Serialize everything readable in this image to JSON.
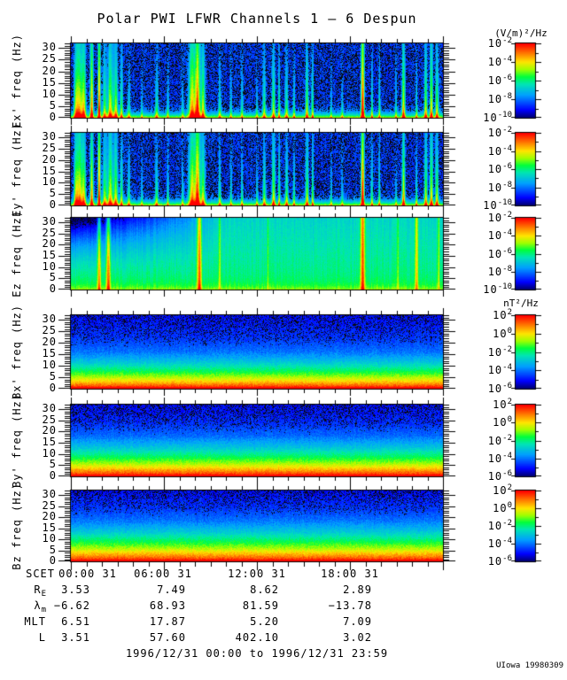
{
  "title": "Polar PWI LFWR Channels 1 — 6 Despun",
  "credit": "UIowa 19980309",
  "footer": {
    "date_range": "1996/12/31 00:00 to 1996/12/31 23:59"
  },
  "units": {
    "electric": "(V/m)²/Hz",
    "magnetic": "nT²/Hz"
  },
  "time_axis": {
    "label": "SCET",
    "tick_labels": [
      "00:00 31",
      "06:00 31",
      "12:00 31",
      "18:00 31"
    ],
    "tick_hours": [
      0,
      6,
      12,
      18
    ],
    "range_hours": [
      0,
      24
    ]
  },
  "ephemeris": {
    "rows": [
      {
        "label": "R",
        "sub": "E",
        "values": [
          "3.53",
          "7.49",
          "8.62",
          "2.89"
        ]
      },
      {
        "label": "λ",
        "sub": "m",
        "values": [
          "−6.62",
          "68.93",
          "81.59",
          "−13.78"
        ]
      },
      {
        "label": "MLT",
        "sub": "",
        "values": [
          "6.51",
          "17.87",
          "5.20",
          "7.09"
        ]
      },
      {
        "label": "L",
        "sub": "",
        "values": [
          "3.51",
          "57.60",
          "402.10",
          "3.02"
        ]
      }
    ]
  },
  "chart_data": {
    "type": "heatmap",
    "title": "Polar PWI LFWR Channels 1 — 6 Despun",
    "colormap": "rainbow-blue-to-red",
    "x_range_hours": [
      0,
      24
    ],
    "x_major_tick_hours": 6,
    "y_range_hz": [
      0,
      32
    ],
    "y_ticks_hz": [
      0,
      5,
      10,
      15,
      20,
      25,
      30
    ],
    "panels": [
      {
        "name": "Ex'",
        "ylabel": "Ex' freq (Hz)",
        "kind": "electric-burst",
        "colorbar": {
          "unit": "(V/m)²/Hz",
          "exponents": [
            -2,
            -4,
            -6,
            -8,
            -10
          ]
        },
        "background_level": 1e-09,
        "bursts": [
          [
            0.012,
            0.5,
            0.004
          ],
          [
            0.022,
            0.7,
            0.006
          ],
          [
            0.034,
            0.6,
            0.004
          ],
          [
            0.055,
            0.8,
            0.003
          ],
          [
            0.075,
            0.95,
            0.0025
          ],
          [
            0.09,
            0.5,
            0.004
          ],
          [
            0.105,
            0.65,
            0.005
          ],
          [
            0.12,
            0.6,
            0.004
          ],
          [
            0.135,
            0.5,
            0.003
          ],
          [
            0.155,
            0.35,
            0.003
          ],
          [
            0.19,
            0.3,
            0.002
          ],
          [
            0.23,
            0.4,
            0.003
          ],
          [
            0.26,
            0.35,
            0.002
          ],
          [
            0.3,
            0.3,
            0.002
          ],
          [
            0.325,
            0.75,
            0.006
          ],
          [
            0.34,
            0.9,
            0.005
          ],
          [
            0.355,
            0.6,
            0.004
          ],
          [
            0.4,
            0.35,
            0.003
          ],
          [
            0.43,
            0.3,
            0.002
          ],
          [
            0.46,
            0.35,
            0.002
          ],
          [
            0.5,
            0.3,
            0.002
          ],
          [
            0.52,
            0.45,
            0.003
          ],
          [
            0.545,
            0.55,
            0.003
          ],
          [
            0.56,
            0.5,
            0.002
          ],
          [
            0.58,
            0.45,
            0.003
          ],
          [
            0.6,
            0.4,
            0.002
          ],
          [
            0.635,
            0.55,
            0.003
          ],
          [
            0.65,
            0.5,
            0.002
          ],
          [
            0.7,
            0.25,
            0.002
          ],
          [
            0.73,
            0.3,
            0.002
          ],
          [
            0.785,
            1.0,
            0.003
          ],
          [
            0.81,
            0.45,
            0.002
          ],
          [
            0.83,
            0.4,
            0.002
          ],
          [
            0.875,
            0.3,
            0.002
          ],
          [
            0.895,
            0.7,
            0.003
          ],
          [
            0.93,
            0.35,
            0.002
          ],
          [
            0.955,
            0.6,
            0.003
          ],
          [
            0.97,
            0.65,
            0.003
          ],
          [
            0.985,
            0.55,
            0.003
          ]
        ]
      },
      {
        "name": "Ey'",
        "ylabel": "Ey' freq (Hz)",
        "kind": "electric-burst",
        "colorbar": {
          "unit": "(V/m)²/Hz",
          "exponents": [
            -2,
            -4,
            -6,
            -8,
            -10
          ]
        },
        "background_level": 1e-09,
        "bursts": [
          [
            0.012,
            0.55,
            0.004
          ],
          [
            0.022,
            0.7,
            0.006
          ],
          [
            0.034,
            0.6,
            0.004
          ],
          [
            0.055,
            0.8,
            0.003
          ],
          [
            0.075,
            0.95,
            0.0025
          ],
          [
            0.09,
            0.55,
            0.004
          ],
          [
            0.105,
            0.65,
            0.005
          ],
          [
            0.12,
            0.6,
            0.004
          ],
          [
            0.135,
            0.5,
            0.003
          ],
          [
            0.155,
            0.4,
            0.003
          ],
          [
            0.19,
            0.3,
            0.002
          ],
          [
            0.23,
            0.45,
            0.003
          ],
          [
            0.26,
            0.35,
            0.002
          ],
          [
            0.3,
            0.35,
            0.002
          ],
          [
            0.325,
            0.75,
            0.006
          ],
          [
            0.34,
            0.9,
            0.005
          ],
          [
            0.355,
            0.6,
            0.004
          ],
          [
            0.4,
            0.4,
            0.003
          ],
          [
            0.43,
            0.35,
            0.002
          ],
          [
            0.46,
            0.4,
            0.002
          ],
          [
            0.5,
            0.35,
            0.002
          ],
          [
            0.52,
            0.5,
            0.003
          ],
          [
            0.545,
            0.6,
            0.003
          ],
          [
            0.56,
            0.5,
            0.002
          ],
          [
            0.58,
            0.5,
            0.003
          ],
          [
            0.6,
            0.45,
            0.002
          ],
          [
            0.635,
            0.55,
            0.003
          ],
          [
            0.65,
            0.5,
            0.002
          ],
          [
            0.7,
            0.3,
            0.002
          ],
          [
            0.73,
            0.3,
            0.002
          ],
          [
            0.785,
            1.0,
            0.003
          ],
          [
            0.81,
            0.45,
            0.002
          ],
          [
            0.83,
            0.4,
            0.002
          ],
          [
            0.875,
            0.3,
            0.002
          ],
          [
            0.895,
            0.7,
            0.003
          ],
          [
            0.93,
            0.4,
            0.002
          ],
          [
            0.955,
            0.6,
            0.003
          ],
          [
            0.97,
            0.65,
            0.003
          ],
          [
            0.985,
            0.6,
            0.003
          ]
        ]
      },
      {
        "name": "Ez",
        "ylabel": "Ez freq (Hz)",
        "kind": "electric-diffuse",
        "colorbar": {
          "unit": "(V/m)²/Hz",
          "exponents": [
            -2,
            -4,
            -6,
            -8,
            -10
          ]
        },
        "background_level": 1e-06,
        "bursts": [
          [
            0.075,
            0.8,
            0.003
          ],
          [
            0.1,
            0.9,
            0.004
          ],
          [
            0.345,
            0.95,
            0.004
          ],
          [
            0.4,
            0.4,
            0.002
          ],
          [
            0.53,
            0.3,
            0.002
          ],
          [
            0.785,
            1.0,
            0.004
          ],
          [
            0.88,
            0.3,
            0.002
          ],
          [
            0.93,
            0.7,
            0.003
          ],
          [
            0.99,
            0.4,
            0.002
          ]
        ]
      },
      {
        "name": "Bx'",
        "ylabel": "Bx' freq (Hz)",
        "kind": "magnetic-gradient",
        "colorbar": {
          "unit": "nT²/Hz",
          "exponents": [
            2,
            0,
            -2,
            -4,
            -6
          ]
        },
        "profile": [
          [
            0,
            1.0
          ],
          [
            1,
            0.92
          ],
          [
            2,
            0.84
          ],
          [
            3,
            0.77
          ],
          [
            5,
            0.65
          ],
          [
            8,
            0.5
          ],
          [
            12,
            0.35
          ],
          [
            16,
            0.23
          ],
          [
            22,
            0.15
          ],
          [
            32,
            0.1
          ]
        ]
      },
      {
        "name": "By'",
        "ylabel": "By' freq (Hz)",
        "kind": "magnetic-gradient",
        "colorbar": {
          "unit": "nT²/Hz",
          "exponents": [
            2,
            0,
            -2,
            -4,
            -6
          ]
        },
        "profile": [
          [
            0,
            1.0
          ],
          [
            1,
            0.93
          ],
          [
            2,
            0.86
          ],
          [
            4,
            0.74
          ],
          [
            6,
            0.63
          ],
          [
            9,
            0.5
          ],
          [
            13,
            0.36
          ],
          [
            18,
            0.22
          ],
          [
            24,
            0.14
          ],
          [
            32,
            0.1
          ]
        ]
      },
      {
        "name": "Bz",
        "ylabel": "Bz freq (Hz)",
        "kind": "magnetic-gradient",
        "colorbar": {
          "unit": "nT²/Hz",
          "exponents": [
            2,
            0,
            -2,
            -4,
            -6
          ]
        },
        "profile": [
          [
            0,
            1.0
          ],
          [
            1,
            0.93
          ],
          [
            2,
            0.86
          ],
          [
            4,
            0.75
          ],
          [
            6,
            0.64
          ],
          [
            9,
            0.52
          ],
          [
            13,
            0.38
          ],
          [
            18,
            0.24
          ],
          [
            24,
            0.15
          ],
          [
            32,
            0.1
          ]
        ]
      }
    ]
  },
  "colors": {
    "background": "#ffffff",
    "frame": "#000000",
    "scale_low": "#0000ff",
    "scale_mid": "#00ff3c",
    "scale_high": "#ff0000"
  }
}
